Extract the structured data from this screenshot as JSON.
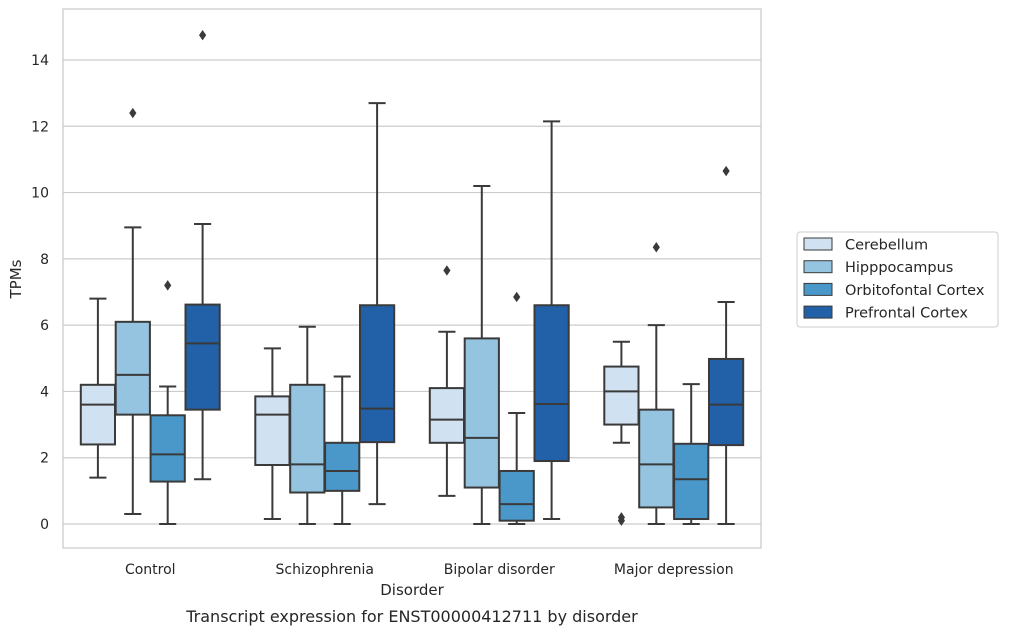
{
  "chart_data": {
    "type": "box",
    "xlabel": "Disorder",
    "ylabel": "TPMs",
    "caption": "Transcript expression for ENST00000412711 by disorder",
    "ylim": [
      -0.7,
      15.5
    ],
    "yticks": [
      0,
      2,
      4,
      6,
      8,
      10,
      12,
      14
    ],
    "grid": "horizontal",
    "legend_position": "right",
    "categories": [
      "Control",
      "Schizophrenia",
      "Bipolar disorder",
      "Major depression"
    ],
    "series": [
      {
        "name": "Cerebellum",
        "color": "#d0e1f2",
        "boxes": [
          {
            "whisker_low": 1.4,
            "q1": 2.4,
            "median": 3.6,
            "q3": 4.2,
            "whisker_high": 6.8,
            "outliers": []
          },
          {
            "whisker_low": 0.15,
            "q1": 1.78,
            "median": 3.3,
            "q3": 3.85,
            "whisker_high": 5.3,
            "outliers": []
          },
          {
            "whisker_low": 0.85,
            "q1": 2.45,
            "median": 3.15,
            "q3": 4.1,
            "whisker_high": 5.8,
            "outliers": [
              7.65
            ]
          },
          {
            "whisker_low": 2.45,
            "q1": 3.0,
            "median": 4.0,
            "q3": 4.75,
            "whisker_high": 5.5,
            "outliers": [
              0.2,
              0.1
            ]
          }
        ]
      },
      {
        "name": "Hipppocampus",
        "color": "#94c4df",
        "boxes": [
          {
            "whisker_low": 0.3,
            "q1": 3.3,
            "median": 4.5,
            "q3": 6.1,
            "whisker_high": 8.95,
            "outliers": [
              12.4
            ]
          },
          {
            "whisker_low": 0.0,
            "q1": 0.95,
            "median": 1.8,
            "q3": 4.2,
            "whisker_high": 5.95,
            "outliers": []
          },
          {
            "whisker_low": 0.0,
            "q1": 1.1,
            "median": 2.6,
            "q3": 5.6,
            "whisker_high": 10.2,
            "outliers": []
          },
          {
            "whisker_low": 0.0,
            "q1": 0.5,
            "median": 1.8,
            "q3": 3.45,
            "whisker_high": 6.0,
            "outliers": [
              8.35
            ]
          }
        ]
      },
      {
        "name": "Orbitofontal Cortex",
        "color": "#4a98c9",
        "boxes": [
          {
            "whisker_low": 0.0,
            "q1": 1.28,
            "median": 2.1,
            "q3": 3.28,
            "whisker_high": 4.15,
            "outliers": [
              7.2
            ]
          },
          {
            "whisker_low": 0.0,
            "q1": 1.0,
            "median": 1.6,
            "q3": 2.45,
            "whisker_high": 4.45,
            "outliers": []
          },
          {
            "whisker_low": 0.0,
            "q1": 0.1,
            "median": 0.6,
            "q3": 1.6,
            "whisker_high": 3.35,
            "outliers": [
              6.85
            ]
          },
          {
            "whisker_low": 0.0,
            "q1": 0.15,
            "median": 1.35,
            "q3": 2.42,
            "whisker_high": 4.22,
            "outliers": []
          }
        ]
      },
      {
        "name": "Prefrontal Cortex",
        "color": "#2260a8",
        "boxes": [
          {
            "whisker_low": 1.35,
            "q1": 3.45,
            "median": 5.45,
            "q3": 6.62,
            "whisker_high": 9.05,
            "outliers": [
              14.75
            ]
          },
          {
            "whisker_low": 0.6,
            "q1": 2.47,
            "median": 3.48,
            "q3": 6.6,
            "whisker_high": 12.7,
            "outliers": []
          },
          {
            "whisker_low": 0.15,
            "q1": 1.9,
            "median": 3.62,
            "q3": 6.6,
            "whisker_high": 12.15,
            "outliers": []
          },
          {
            "whisker_low": 0.0,
            "q1": 2.38,
            "median": 3.6,
            "q3": 4.98,
            "whisker_high": 6.7,
            "outliers": [
              10.65
            ]
          }
        ]
      }
    ]
  }
}
